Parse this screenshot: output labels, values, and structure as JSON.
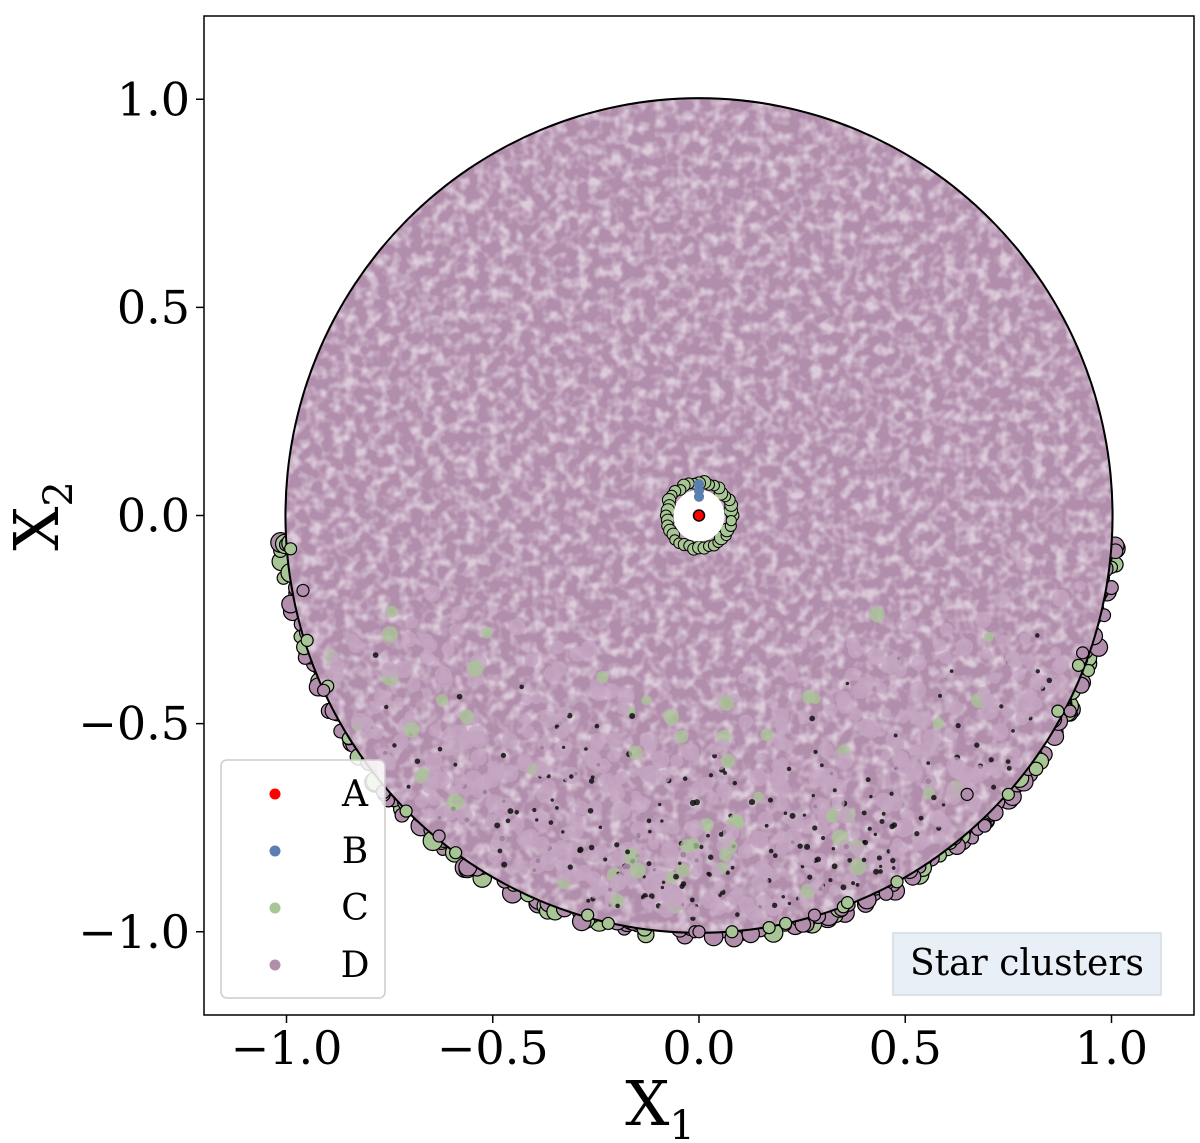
{
  "chart_data": {
    "type": "scatter",
    "title": "",
    "xlabel": "X",
    "xlabel_sub": "1",
    "ylabel": "X",
    "ylabel_sub": "2",
    "xlim": [
      -1.2,
      1.2
    ],
    "ylim": [
      -1.2,
      1.2
    ],
    "xticks": [
      -1.0,
      -0.5,
      0.0,
      0.5,
      1.0
    ],
    "xtick_labels": [
      "−1.0",
      "−0.5",
      "0.0",
      "0.5",
      "1.0"
    ],
    "yticks": [
      1.0,
      0.5,
      0.0,
      -0.5,
      -1.0
    ],
    "ytick_labels": [
      "1.0",
      "0.5",
      "0.0",
      "−0.5",
      "−1.0"
    ],
    "grid": false,
    "legend": {
      "placement": "lower-left"
    },
    "annotation": "Star clusters",
    "series": [
      {
        "name": "A",
        "color": "#ff0000",
        "points": [
          [
            0.0,
            0.0
          ]
        ]
      },
      {
        "name": "B",
        "color": "#5b7fb0",
        "points": [
          [
            0.0,
            0.045
          ],
          [
            0.0,
            0.06
          ],
          [
            0.0,
            0.075
          ]
        ]
      },
      {
        "name": "C",
        "color": "#a8c596",
        "region": "ring boundary around inner hole (r≈0.07) and scattered along lower rim of disk",
        "points": [
          [
            -0.59,
            -0.81
          ],
          [
            -0.27,
            -0.96
          ],
          [
            -0.22,
            -0.98
          ],
          [
            0.08,
            -1.0
          ],
          [
            0.17,
            -0.99
          ],
          [
            0.21,
            -0.98
          ],
          [
            0.35,
            -0.94
          ],
          [
            0.36,
            -0.93
          ],
          [
            0.48,
            -0.88
          ],
          [
            0.75,
            -0.67
          ],
          [
            0.92,
            -0.36
          ],
          [
            0.87,
            -0.47
          ],
          [
            -0.71,
            -0.71
          ],
          [
            -0.9,
            -0.41
          ],
          [
            -0.95,
            -0.3
          ],
          [
            -0.99,
            -0.08
          ]
        ]
      },
      {
        "name": "D",
        "color": "#b28ead",
        "region": "dense disk of radius 1.0 centred at origin, excluding central hole r≈0.06",
        "points": [
          [
            -0.91,
            -0.42
          ],
          [
            -0.96,
            -0.18
          ],
          [
            -0.01,
            -1.0
          ],
          [
            0.0,
            -1.0
          ],
          [
            0.28,
            -0.96
          ],
          [
            0.93,
            -0.33
          ],
          [
            0.9,
            -0.47
          ],
          [
            0.65,
            -0.67
          ],
          [
            -0.63,
            -0.77
          ]
        ]
      }
    ]
  }
}
